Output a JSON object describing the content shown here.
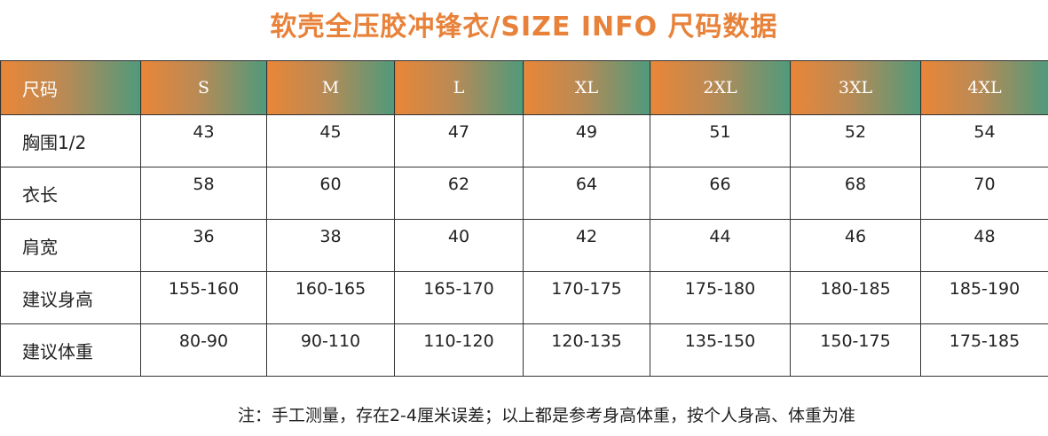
{
  "title": "软壳全压胶冲锋衣/SIZE   INFO 尺码数据",
  "colors": {
    "title": "#e8823a",
    "header_gradient_start": "#e98638",
    "header_gradient_end": "#4f9a7c",
    "header_text": "#ffffff",
    "border": "#333333"
  },
  "table": {
    "header": [
      "尺码",
      "S",
      "M",
      "L",
      "XL",
      "2XL",
      "3XL",
      "4XL"
    ],
    "rows": [
      {
        "label": "胸围1/2",
        "values": [
          "43",
          "45",
          "47",
          "49",
          "51",
          "52",
          "54"
        ]
      },
      {
        "label": "衣长",
        "values": [
          "58",
          "60",
          "62",
          "64",
          "66",
          "68",
          "70"
        ]
      },
      {
        "label": "肩宽",
        "values": [
          "36",
          "38",
          "40",
          "42",
          "44",
          "46",
          "48"
        ]
      },
      {
        "label": "建议身高",
        "values": [
          "155-160",
          "160-165",
          "165-170",
          "170-175",
          "175-180",
          "180-185",
          "185-190"
        ]
      },
      {
        "label": "建议体重",
        "values": [
          "80-90",
          "90-110",
          "110-120",
          "120-135",
          "135-150",
          "150-175",
          "175-185"
        ]
      }
    ]
  },
  "note": "注：手工测量，存在2-4厘米误差；以上都是参考身高体重，按个人身高、体重为准"
}
